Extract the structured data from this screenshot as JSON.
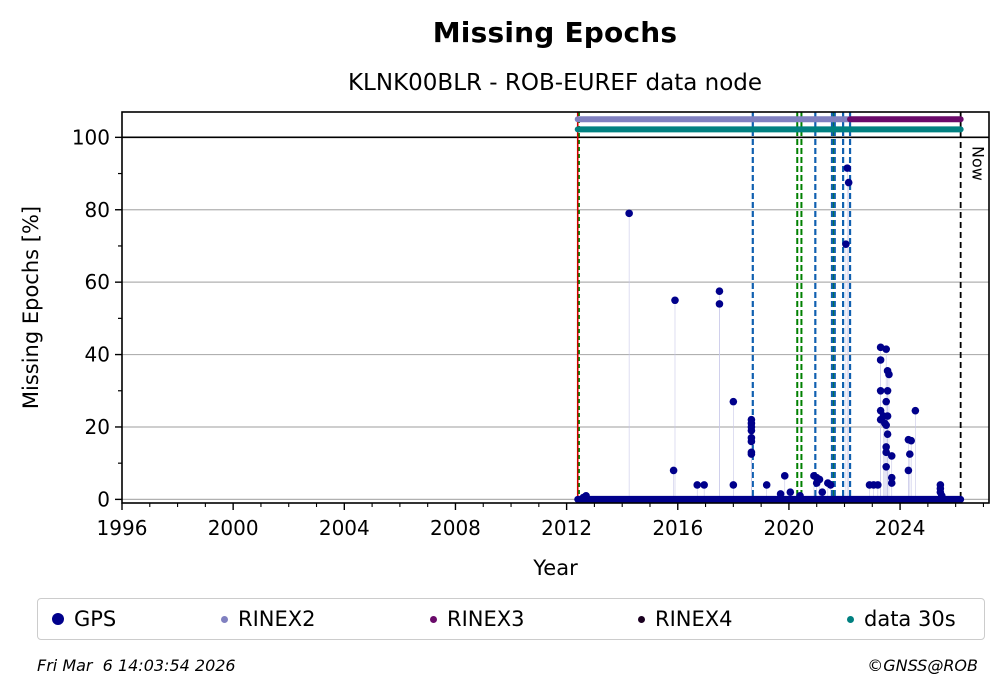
{
  "chart_data": {
    "type": "scatter",
    "title": "Missing Epochs",
    "subtitle": "KLNK00BLR - ROB-EUREF data node",
    "xlabel": "Year",
    "ylabel": "Missing Epochs [%]",
    "xlim": [
      1996,
      2027.2
    ],
    "ylim": [
      -1,
      107
    ],
    "xticks": [
      1996,
      2000,
      2004,
      2008,
      2012,
      2016,
      2020,
      2024
    ],
    "yticks": [
      0,
      20,
      40,
      60,
      80,
      100
    ],
    "grid": true,
    "now_label": "Now",
    "now_x": 2026.18,
    "start_x": 2012.4,
    "series": [
      {
        "name": "GPS",
        "color": "#00008b",
        "points": [
          [
            2014.25,
            79
          ],
          [
            2015.9,
            55
          ],
          [
            2017.5,
            57.5
          ],
          [
            2017.5,
            54
          ],
          [
            2018.0,
            27
          ],
          [
            2018.65,
            22
          ],
          [
            2018.65,
            21
          ],
          [
            2018.65,
            20
          ],
          [
            2018.65,
            19
          ],
          [
            2018.65,
            17
          ],
          [
            2018.65,
            16
          ],
          [
            2018.65,
            13
          ],
          [
            2018.65,
            12.5
          ],
          [
            2022.1,
            91.5
          ],
          [
            2022.15,
            87.5
          ],
          [
            2022.05,
            70.5
          ],
          [
            2023.3,
            42
          ],
          [
            2023.5,
            41.5
          ],
          [
            2023.3,
            38.5
          ],
          [
            2023.55,
            35.5
          ],
          [
            2023.6,
            34.5
          ],
          [
            2023.3,
            30
          ],
          [
            2023.55,
            30
          ],
          [
            2023.5,
            27
          ],
          [
            2023.3,
            24.5
          ],
          [
            2023.4,
            23
          ],
          [
            2023.55,
            23
          ],
          [
            2023.3,
            22
          ],
          [
            2023.45,
            21
          ],
          [
            2023.5,
            20.5
          ],
          [
            2023.55,
            18
          ],
          [
            2023.5,
            14.5
          ],
          [
            2023.5,
            13
          ],
          [
            2023.7,
            12
          ],
          [
            2023.5,
            9
          ],
          [
            2023.7,
            6
          ],
          [
            2023.7,
            4.5
          ],
          [
            2024.3,
            16.5
          ],
          [
            2024.4,
            16.2
          ],
          [
            2024.35,
            12.5
          ],
          [
            2024.3,
            8
          ],
          [
            2024.55,
            24.5
          ],
          [
            2015.85,
            8
          ],
          [
            2016.7,
            4
          ],
          [
            2016.95,
            4
          ],
          [
            2018.0,
            4
          ],
          [
            2019.2,
            4
          ],
          [
            2019.85,
            6.5
          ],
          [
            2019.7,
            1.5
          ],
          [
            2020.05,
            2
          ],
          [
            2020.4,
            1
          ],
          [
            2020.9,
            6.5
          ],
          [
            2021.0,
            6
          ],
          [
            2021.1,
            5.5
          ],
          [
            2021.0,
            4.5
          ],
          [
            2021.4,
            4.5
          ],
          [
            2021.5,
            4
          ],
          [
            2021.2,
            2
          ],
          [
            2022.9,
            4
          ],
          [
            2023.05,
            4
          ],
          [
            2023.2,
            4
          ],
          [
            2025.45,
            4
          ],
          [
            2025.45,
            3
          ],
          [
            2025.45,
            2
          ],
          [
            2025.5,
            1
          ],
          [
            2012.6,
            0.5
          ],
          [
            2012.7,
            1
          ]
        ]
      },
      {
        "name": "RINEX2",
        "color": "#8080c0",
        "range": [
          2012.4,
          2022.2
        ]
      },
      {
        "name": "RINEX3",
        "color": "#6a0a6a",
        "range": [
          2022.2,
          2026.18
        ]
      },
      {
        "name": "RINEX4",
        "color": "#1a0020",
        "range": []
      },
      {
        "name": "data 30s",
        "color": "#008080",
        "range": [
          2012.4,
          2026.18
        ]
      }
    ],
    "vlines_dashed_blue": [
      2018.7,
      2020.95,
      2021.55,
      2021.65,
      2021.95,
      2022.2
    ],
    "vlines_dashed_green": [
      2020.3,
      2020.45,
      2021.6
    ],
    "vline_start_red": 2012.4,
    "vline_start_green": 2012.45
  },
  "legend": {
    "gps": "GPS",
    "rinex2": "RINEX2",
    "rinex3": "RINEX3",
    "rinex4": "RINEX4",
    "data30s": "data 30s"
  },
  "footer": {
    "timestamp": "Fri Mar  6 14:03:54 2026",
    "credit": "©GNSS@ROB"
  }
}
